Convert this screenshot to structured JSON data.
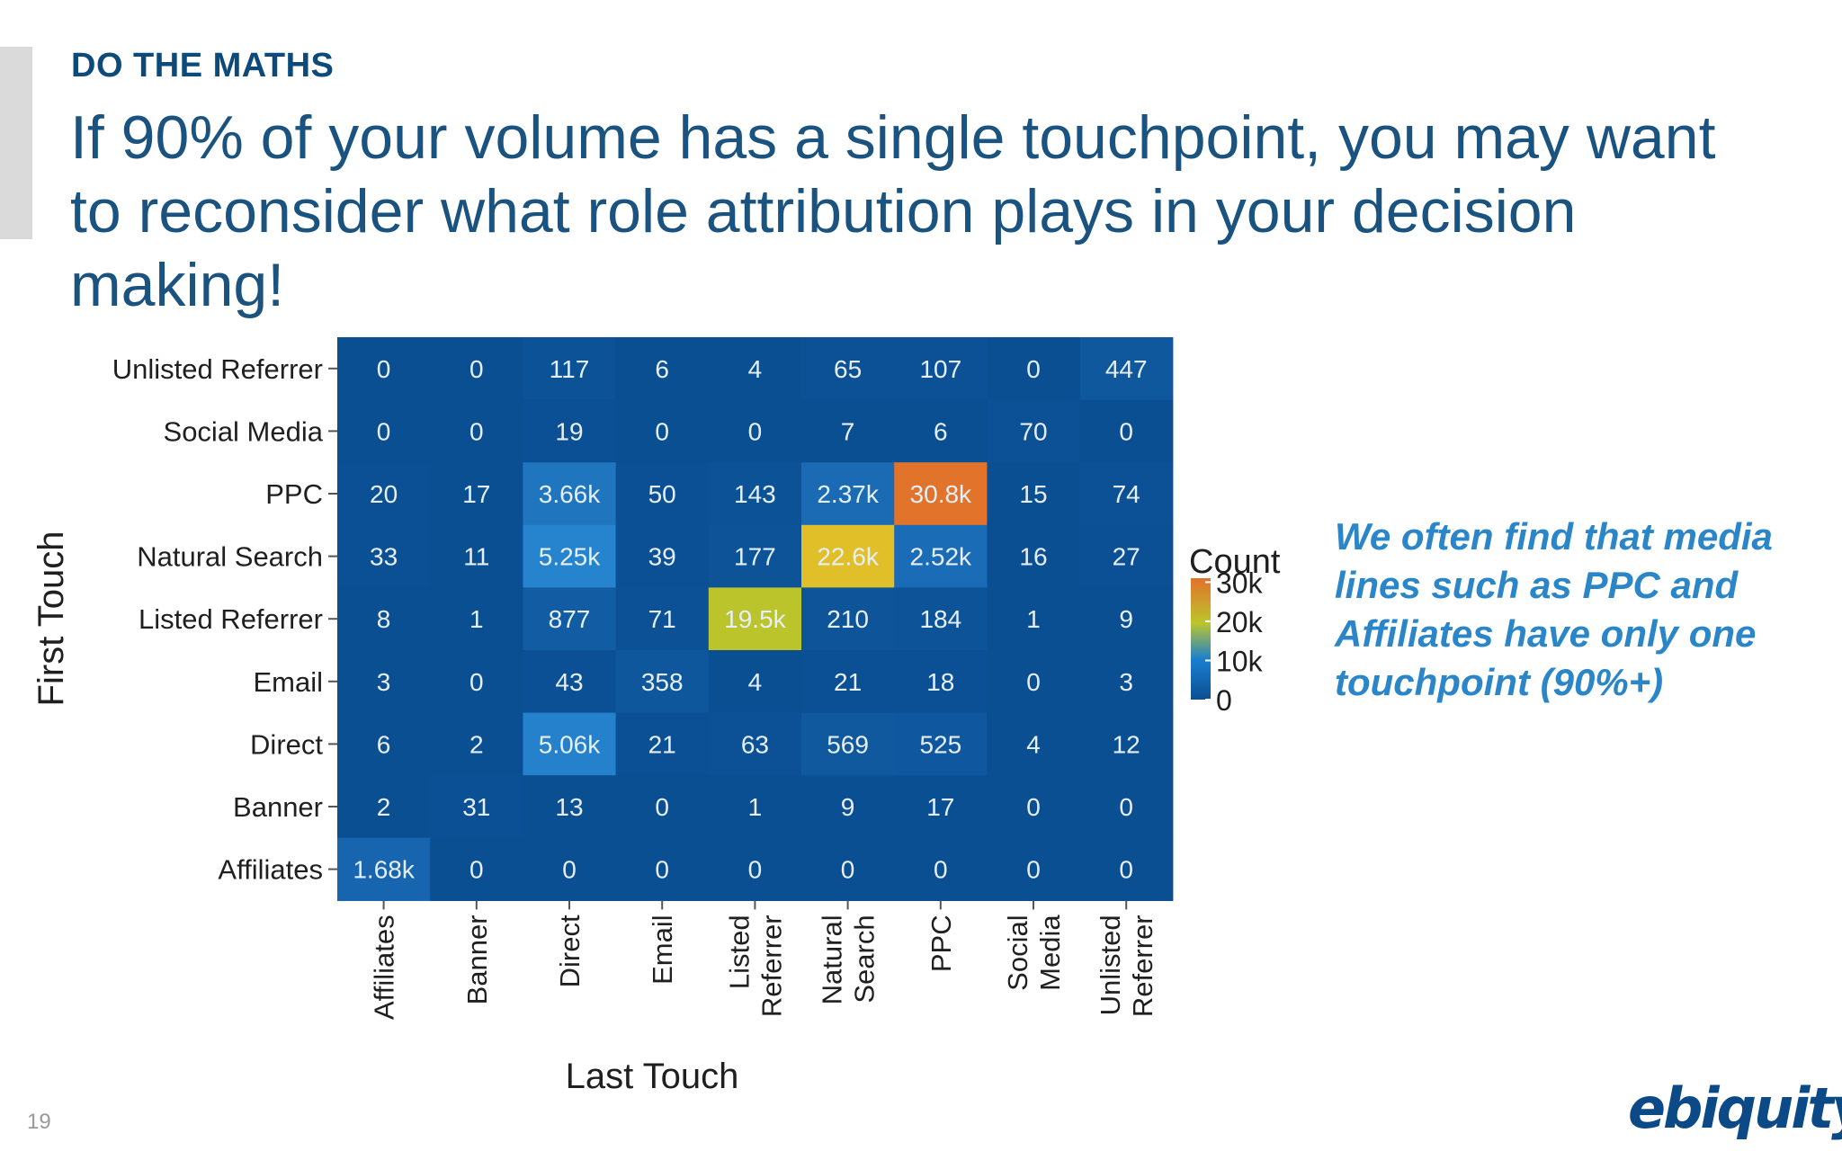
{
  "slide": {
    "kicker": "DO THE MATHS",
    "headline": "If 90% of your volume has a single touchpoint, you may want to reconsider what role attribution plays in your decision making!",
    "callout": "We often find that media lines such as PPC and Affiliates have only one touchpoint (90%+)",
    "page_number": "19",
    "logo_text": "ebiquity"
  },
  "colors": {
    "kicker": "#0b4a7a",
    "headline": "#1a5280",
    "callout": "#2a86c8",
    "logo": "#0b4a86",
    "heatmap_low": "#0b4f93",
    "heatmap_high": "#e2712b"
  },
  "chart_data": {
    "type": "heatmap",
    "xlabel": "Last Touch",
    "ylabel": "First Touch",
    "x_categories": [
      [
        "Affiliates"
      ],
      [
        "Banner"
      ],
      [
        "Direct"
      ],
      [
        "Email"
      ],
      [
        "Listed",
        "Referrer"
      ],
      [
        "Natural",
        "Search"
      ],
      [
        "PPC"
      ],
      [
        "Social",
        "Media"
      ],
      [
        "Unlisted",
        "Referrer"
      ]
    ],
    "y_categories": [
      "Unlisted Referrer",
      "Social Media",
      "PPC",
      "Natural Search",
      "Listed Referrer",
      "Email",
      "Direct",
      "Banner",
      "Affiliates"
    ],
    "values": [
      [
        0,
        0,
        117,
        6,
        4,
        65,
        107,
        0,
        447
      ],
      [
        0,
        0,
        19,
        0,
        0,
        7,
        6,
        70,
        0
      ],
      [
        20,
        17,
        3660,
        50,
        143,
        2370,
        30800,
        15,
        74
      ],
      [
        33,
        11,
        5250,
        39,
        177,
        22600,
        2520,
        16,
        27
      ],
      [
        8,
        1,
        877,
        71,
        19500,
        210,
        184,
        1,
        9
      ],
      [
        3,
        0,
        43,
        358,
        4,
        21,
        18,
        0,
        3
      ],
      [
        6,
        2,
        5060,
        21,
        63,
        569,
        525,
        4,
        12
      ],
      [
        2,
        31,
        13,
        0,
        1,
        9,
        17,
        0,
        0
      ],
      [
        1680,
        0,
        0,
        0,
        0,
        0,
        0,
        0,
        0
      ]
    ],
    "labels": [
      [
        "0",
        "0",
        "117",
        "6",
        "4",
        "65",
        "107",
        "0",
        "447"
      ],
      [
        "0",
        "0",
        "19",
        "0",
        "0",
        "7",
        "6",
        "70",
        "0"
      ],
      [
        "20",
        "17",
        "3.66k",
        "50",
        "143",
        "2.37k",
        "30.8k",
        "15",
        "74"
      ],
      [
        "33",
        "11",
        "5.25k",
        "39",
        "177",
        "22.6k",
        "2.52k",
        "16",
        "27"
      ],
      [
        "8",
        "1",
        "877",
        "71",
        "19.5k",
        "210",
        "184",
        "1",
        "9"
      ],
      [
        "3",
        "0",
        "43",
        "358",
        "4",
        "21",
        "18",
        "0",
        "3"
      ],
      [
        "6",
        "2",
        "5.06k",
        "21",
        "63",
        "569",
        "525",
        "4",
        "12"
      ],
      [
        "2",
        "31",
        "13",
        "0",
        "1",
        "9",
        "17",
        "0",
        "0"
      ],
      [
        "1.68k",
        "0",
        "0",
        "0",
        "0",
        "0",
        "0",
        "0",
        "0"
      ]
    ],
    "legend": {
      "title": "Count",
      "ticks": [
        "30k",
        "20k",
        "10k",
        "0"
      ],
      "tick_values": [
        30000,
        20000,
        10000,
        0
      ],
      "placement": "right"
    },
    "color_range": [
      0,
      31000
    ]
  }
}
